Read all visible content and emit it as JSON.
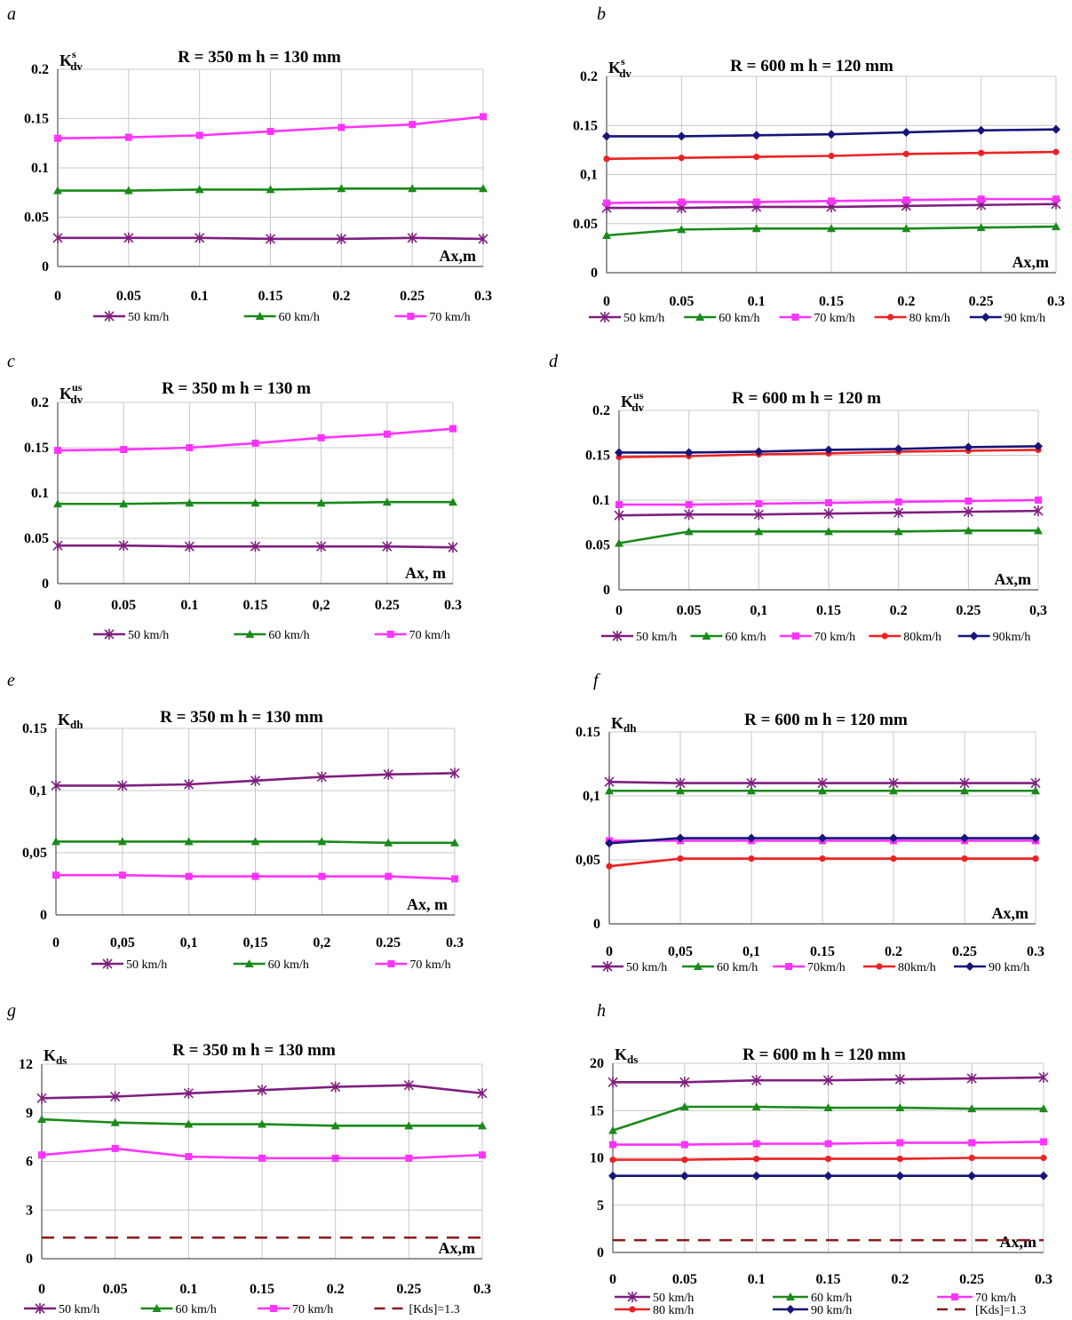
{
  "colors": {
    "50 km/h": "#7f1f7f",
    "60 km/h": "#1a8a1a",
    "70 km/h": "#ff33ff",
    "80 km/h": "#ee2222",
    "90 km/h": "#15157a",
    "limit": "#8b1a1a"
  },
  "chart_data": [
    {
      "panel": "a",
      "type": "line",
      "title": "R = 350 m  h = 130 mm",
      "ylabel": "K",
      "ylabel_sub": "dv",
      "ylabel_sup": "s",
      "xlabel": "Ax,m",
      "x": [
        0,
        0.05,
        0.1,
        0.15,
        0.2,
        0.25,
        0.3
      ],
      "xticks": [
        "0",
        "0.05",
        "0.1",
        "0.15",
        "0.2",
        "0.25",
        "0.3"
      ],
      "ylim": [
        0,
        0.2
      ],
      "yticks": [
        "0",
        "0.05",
        "0.1",
        "0.15",
        "0.2"
      ],
      "grid": true,
      "legend": "bottom",
      "series": [
        {
          "name": "50  km/h",
          "key": "50 km/h",
          "marker": "star",
          "values": [
            0.029,
            0.029,
            0.029,
            0.028,
            0.028,
            0.029,
            0.028
          ]
        },
        {
          "name": "60  km/h",
          "key": "60 km/h",
          "marker": "triangle",
          "values": [
            0.077,
            0.077,
            0.078,
            0.078,
            0.079,
            0.079,
            0.079
          ]
        },
        {
          "name": "70 km/h",
          "key": "70 km/h",
          "marker": "square",
          "values": [
            0.13,
            0.131,
            0.133,
            0.137,
            0.141,
            0.144,
            0.152
          ]
        }
      ]
    },
    {
      "panel": "b",
      "type": "line",
      "title": "R = 600 m   h = 120 mm",
      "ylabel": "K",
      "ylabel_sub": "dv",
      "ylabel_sup": "s",
      "xlabel": "Ax,m",
      "x": [
        0,
        0.05,
        0.1,
        0.15,
        0.2,
        0.25,
        0.3
      ],
      "xticks": [
        "0",
        "0.05",
        "0.1",
        "0.15",
        "0.2",
        "0.25",
        "0.3"
      ],
      "ylim": [
        0,
        0.2
      ],
      "yticks": [
        "0",
        "0.05",
        "0,1",
        "0.15",
        "0.2"
      ],
      "grid": true,
      "legend": "bottom",
      "series": [
        {
          "name": "50 km/h",
          "key": "50 km/h",
          "marker": "star",
          "values": [
            0.066,
            0.066,
            0.067,
            0.067,
            0.068,
            0.069,
            0.07
          ]
        },
        {
          "name": "60 km/h",
          "key": "60 km/h",
          "marker": "triangle",
          "values": [
            0.038,
            0.044,
            0.045,
            0.045,
            0.045,
            0.046,
            0.047
          ]
        },
        {
          "name": "70 km/h",
          "key": "70 km/h",
          "marker": "square",
          "values": [
            0.071,
            0.072,
            0.072,
            0.073,
            0.074,
            0.075,
            0.075
          ]
        },
        {
          "name": "80 km/h",
          "key": "80 km/h",
          "marker": "circle",
          "values": [
            0.116,
            0.117,
            0.118,
            0.119,
            0.121,
            0.122,
            0.123
          ]
        },
        {
          "name": "90 km/h",
          "key": "90 km/h",
          "marker": "diamond",
          "values": [
            0.139,
            0.139,
            0.14,
            0.141,
            0.143,
            0.145,
            0.146
          ]
        }
      ]
    },
    {
      "panel": "c",
      "type": "line",
      "title": "R = 350 m   h = 130 m",
      "ylabel": "K",
      "ylabel_sub": "dv",
      "ylabel_sup": "us",
      "xlabel": "Ax, m",
      "x": [
        0,
        0.05,
        0.1,
        0.15,
        0.2,
        0.25,
        0.3
      ],
      "xticks": [
        "0",
        "0.05",
        "0.1",
        "0.15",
        "0,2",
        "0.25",
        "0.3"
      ],
      "ylim": [
        0,
        0.2
      ],
      "yticks": [
        "0",
        "0.05",
        "0.1",
        "0.15",
        "0.2"
      ],
      "grid": true,
      "legend": "bottom",
      "series": [
        {
          "name": "50 km/h",
          "key": "50 km/h",
          "marker": "star",
          "values": [
            0.042,
            0.042,
            0.041,
            0.041,
            0.041,
            0.041,
            0.04
          ]
        },
        {
          "name": "60 km/h",
          "key": "60 km/h",
          "marker": "triangle",
          "values": [
            0.088,
            0.088,
            0.089,
            0.089,
            0.089,
            0.09,
            0.09
          ]
        },
        {
          "name": "70 km/h",
          "key": "70 km/h",
          "marker": "square",
          "values": [
            0.147,
            0.148,
            0.15,
            0.155,
            0.161,
            0.165,
            0.171
          ]
        }
      ]
    },
    {
      "panel": "d",
      "type": "line",
      "title": "R = 600 m   h = 120 m",
      "ylabel": "K",
      "ylabel_sub": "dv",
      "ylabel_sup": "us",
      "xlabel": "Ax,m",
      "x": [
        0,
        0.05,
        0.1,
        0.15,
        0.2,
        0.25,
        0.3
      ],
      "xticks": [
        "0",
        "0.05",
        "0,1",
        "0.15",
        "0.2",
        "0.25",
        "0,3"
      ],
      "ylim": [
        0,
        0.2
      ],
      "yticks": [
        "0",
        "0.05",
        "0.1",
        "0.15",
        "0.2"
      ],
      "grid": true,
      "legend": "bottom",
      "series": [
        {
          "name": "50 km/h",
          "key": "50 km/h",
          "marker": "star",
          "values": [
            0.083,
            0.084,
            0.084,
            0.085,
            0.086,
            0.087,
            0.088
          ]
        },
        {
          "name": "60 km/h",
          "key": "60 km/h",
          "marker": "triangle",
          "values": [
            0.052,
            0.065,
            0.065,
            0.065,
            0.065,
            0.066,
            0.066
          ]
        },
        {
          "name": "70 km/h",
          "key": "70 km/h",
          "marker": "square",
          "values": [
            0.095,
            0.095,
            0.096,
            0.097,
            0.098,
            0.099,
            0.1
          ]
        },
        {
          "name": "80km/h",
          "key": "80 km/h",
          "marker": "circle",
          "values": [
            0.148,
            0.149,
            0.151,
            0.152,
            0.154,
            0.155,
            0.156
          ]
        },
        {
          "name": "90km/h",
          "key": "90 km/h",
          "marker": "diamond",
          "values": [
            0.153,
            0.153,
            0.154,
            0.156,
            0.157,
            0.159,
            0.16
          ]
        }
      ]
    },
    {
      "panel": "e",
      "type": "line",
      "title": "R = 350 m   h = 130 mm",
      "ylabel": "K",
      "ylabel_sub": "dh",
      "ylabel_sup": "",
      "xlabel": "Ax, m",
      "x": [
        0,
        0.05,
        0.1,
        0.15,
        0.2,
        0.25,
        0.3
      ],
      "xticks": [
        "0",
        "0,05",
        "0,1",
        "0,15",
        "0,2",
        "0.25",
        "0.3"
      ],
      "ylim": [
        0,
        0.15
      ],
      "yticks": [
        "0",
        "0,05",
        "0,1",
        "0.15"
      ],
      "grid": true,
      "legend": "bottom",
      "series": [
        {
          "name": "50 km/h",
          "key": "50 km/h",
          "marker": "star",
          "values": [
            0.104,
            0.104,
            0.105,
            0.108,
            0.111,
            0.113,
            0.114
          ]
        },
        {
          "name": "60 km/h",
          "key": "60 km/h",
          "marker": "triangle",
          "values": [
            0.059,
            0.059,
            0.059,
            0.059,
            0.059,
            0.058,
            0.058
          ]
        },
        {
          "name": "70 km/h",
          "key": "70 km/h",
          "marker": "square",
          "values": [
            0.032,
            0.032,
            0.031,
            0.031,
            0.031,
            0.031,
            0.029
          ]
        }
      ]
    },
    {
      "panel": "f",
      "type": "line",
      "title": "R = 600 m   h = 120 mm",
      "ylabel": "K",
      "ylabel_sub": "dh",
      "ylabel_sup": "",
      "xlabel": "Ax,m",
      "x": [
        0,
        0.05,
        0.1,
        0.15,
        0.2,
        0.25,
        0.3
      ],
      "xticks": [
        "0",
        "0,05",
        "0,1",
        "0.15",
        "0.2",
        "0.25",
        "0.3"
      ],
      "ylim": [
        0,
        0.15
      ],
      "yticks": [
        "0",
        "0,05",
        "0,1",
        "0.15"
      ],
      "grid": true,
      "legend": "bottom",
      "series": [
        {
          "name": "50 km/h",
          "key": "50 km/h",
          "marker": "star",
          "values": [
            0.111,
            0.11,
            0.11,
            0.11,
            0.11,
            0.11,
            0.11
          ]
        },
        {
          "name": "60 km/h",
          "key": "60 km/h",
          "marker": "triangle",
          "values": [
            0.104,
            0.104,
            0.104,
            0.104,
            0.104,
            0.104,
            0.104
          ]
        },
        {
          "name": "70km/h",
          "key": "70 km/h",
          "marker": "square",
          "values": [
            0.065,
            0.065,
            0.065,
            0.065,
            0.065,
            0.065,
            0.065
          ]
        },
        {
          "name": "80km/h",
          "key": "80 km/h",
          "marker": "circle",
          "values": [
            0.045,
            0.051,
            0.051,
            0.051,
            0.051,
            0.051,
            0.051
          ]
        },
        {
          "name": "90 km/h",
          "key": "90 km/h",
          "marker": "diamond",
          "values": [
            0.063,
            0.067,
            0.067,
            0.067,
            0.067,
            0.067,
            0.067
          ]
        }
      ]
    },
    {
      "panel": "g",
      "type": "line",
      "title": "R = 350 m   h = 130 mm",
      "ylabel": "K",
      "ylabel_sub": "ds",
      "ylabel_sup": "",
      "xlabel": "Ax,m",
      "x": [
        0,
        0.05,
        0.1,
        0.15,
        0.2,
        0.25,
        0.3
      ],
      "xticks": [
        "0",
        "0.05",
        "0.1",
        "0.15",
        "0.2",
        "0.25",
        "0.3"
      ],
      "ylim": [
        0,
        12
      ],
      "yticks": [
        "0",
        "3",
        "6",
        "9",
        "12"
      ],
      "grid": true,
      "legend": "bottom",
      "series": [
        {
          "name": "50 km/h",
          "key": "50 km/h",
          "marker": "star",
          "values": [
            9.9,
            10.0,
            10.2,
            10.4,
            10.6,
            10.7,
            10.2
          ]
        },
        {
          "name": "60 km/h",
          "key": "60 km/h",
          "marker": "triangle",
          "values": [
            8.6,
            8.4,
            8.3,
            8.3,
            8.2,
            8.2,
            8.2
          ]
        },
        {
          "name": "70 km/h",
          "key": "70 km/h",
          "marker": "square",
          "values": [
            6.4,
            6.8,
            6.3,
            6.2,
            6.2,
            6.2,
            6.4
          ]
        },
        {
          "name": "[Kds]=1.3",
          "key": "limit",
          "marker": "dash",
          "values": [
            1.3,
            1.3,
            1.3,
            1.3,
            1.3,
            1.3,
            1.3
          ]
        }
      ]
    },
    {
      "panel": "h",
      "type": "line",
      "title": "R = 600 m   h = 120 mm",
      "ylabel": "K",
      "ylabel_sub": "ds",
      "ylabel_sup": "",
      "xlabel": "Ax,m",
      "x": [
        0,
        0.05,
        0.1,
        0.15,
        0.2,
        0.25,
        0.3
      ],
      "xticks": [
        "0",
        "0.05",
        "0.1",
        "0.15",
        "0.2",
        "0.25",
        "0.3"
      ],
      "ylim": [
        0,
        20
      ],
      "yticks": [
        "0",
        "5",
        "10",
        "15",
        "20"
      ],
      "grid": true,
      "legend": "bottom",
      "series": [
        {
          "name": "50 km/h",
          "key": "50 km/h",
          "marker": "star",
          "values": [
            18.0,
            18.0,
            18.2,
            18.2,
            18.3,
            18.4,
            18.5
          ]
        },
        {
          "name": "60 km/h",
          "key": "60 km/h",
          "marker": "triangle",
          "values": [
            12.9,
            15.4,
            15.4,
            15.3,
            15.3,
            15.2,
            15.2
          ]
        },
        {
          "name": "70 km/h",
          "key": "70 km/h",
          "marker": "square",
          "values": [
            11.4,
            11.4,
            11.5,
            11.5,
            11.6,
            11.6,
            11.7
          ]
        },
        {
          "name": "80 km/h",
          "key": "80 km/h",
          "marker": "circle",
          "values": [
            9.8,
            9.8,
            9.9,
            9.9,
            9.9,
            10.0,
            10.0
          ]
        },
        {
          "name": "90 km/h",
          "key": "90 km/h",
          "marker": "diamond",
          "values": [
            8.1,
            8.1,
            8.1,
            8.1,
            8.1,
            8.1,
            8.1
          ]
        },
        {
          "name": "[Kds]=1.3",
          "key": "limit",
          "marker": "dash",
          "values": [
            1.3,
            1.3,
            1.3,
            1.3,
            1.3,
            1.3,
            1.3
          ]
        }
      ]
    }
  ]
}
